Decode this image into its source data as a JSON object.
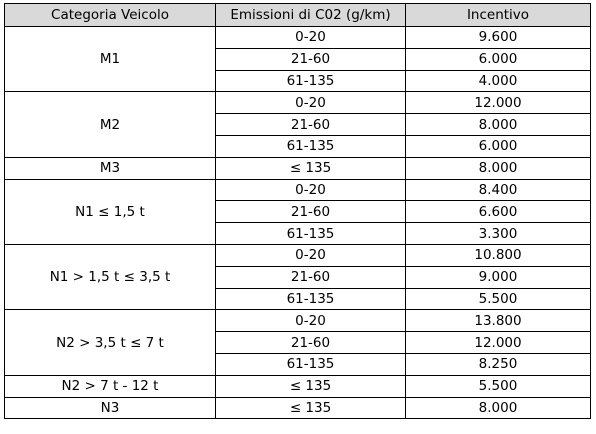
{
  "table": {
    "headers": [
      "Categoria Veicolo",
      "Emissioni di C02 (g/km)",
      "Incentivo"
    ],
    "groups": [
      {
        "category": "M1",
        "rows": [
          {
            "emissions": "0-20",
            "incentive": "9.600"
          },
          {
            "emissions": "21-60",
            "incentive": "6.000"
          },
          {
            "emissions": "61-135",
            "incentive": "4.000"
          }
        ]
      },
      {
        "category": "M2",
        "rows": [
          {
            "emissions": "0-20",
            "incentive": "12.000"
          },
          {
            "emissions": "21-60",
            "incentive": "8.000"
          },
          {
            "emissions": "61-135",
            "incentive": "6.000"
          }
        ]
      },
      {
        "category": "M3",
        "rows": [
          {
            "emissions": "≤ 135",
            "incentive": "8.000"
          }
        ]
      },
      {
        "category": "N1 ≤ 1,5 t",
        "rows": [
          {
            "emissions": "0-20",
            "incentive": "8.400"
          },
          {
            "emissions": "21-60",
            "incentive": "6.600"
          },
          {
            "emissions": "61-135",
            "incentive": "3.300"
          }
        ]
      },
      {
        "category": "N1 > 1,5 t ≤ 3,5 t",
        "rows": [
          {
            "emissions": "0-20",
            "incentive": "10.800"
          },
          {
            "emissions": "21-60",
            "incentive": "9.000"
          },
          {
            "emissions": "61-135",
            "incentive": "5.500"
          }
        ]
      },
      {
        "category": "N2 > 3,5 t ≤ 7 t",
        "rows": [
          {
            "emissions": "0-20",
            "incentive": "13.800"
          },
          {
            "emissions": "21-60",
            "incentive": "12.000"
          },
          {
            "emissions": "61-135",
            "incentive": "8.250"
          }
        ]
      },
      {
        "category": "N2 > 7 t - 12 t",
        "rows": [
          {
            "emissions": "≤ 135",
            "incentive": "5.500"
          }
        ]
      },
      {
        "category": "N3",
        "rows": [
          {
            "emissions": "≤ 135",
            "incentive": "8.000"
          }
        ]
      }
    ]
  },
  "colors": {
    "header_background": "#d9d9d9",
    "border": "#000000",
    "text": "#000000"
  }
}
